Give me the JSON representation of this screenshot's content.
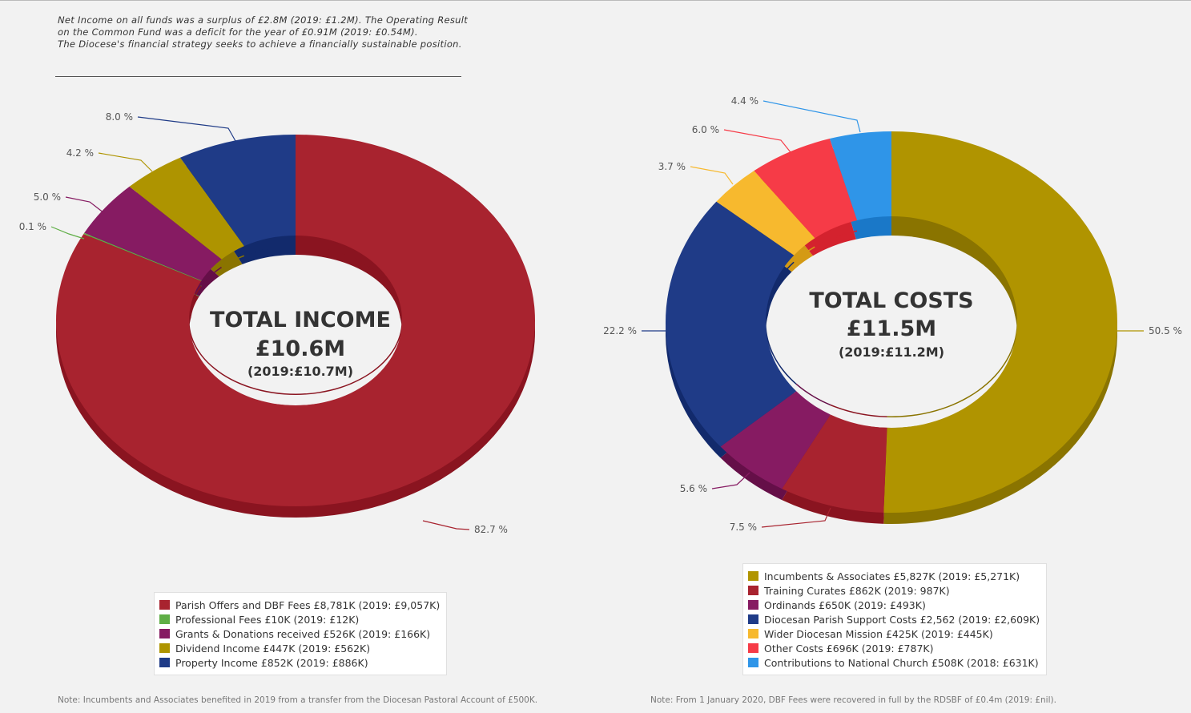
{
  "intro": {
    "lines": [
      "Net Income on all funds was a surplus of £2.8M (2019: £1.2M). The Operating Result",
      "on the Common Fund was a deficit for the year of £0.91M (2019: £0.54M).",
      "The Diocese's financial strategy seeks to achieve a financially sustainable position."
    ]
  },
  "chart_data": [
    {
      "type": "pie",
      "subtype": "donut",
      "center": {
        "title": "TOTAL INCOME",
        "value": "£10.6M",
        "sub": "(2019:£10.7M)"
      },
      "slices": [
        {
          "label": "Parish Offers and DBF Fees £8,781K (2019: £9,057K)",
          "value": 82.7,
          "pct_label": "82.7 %",
          "color": "#a8232f",
          "dark": "#8a1420"
        },
        {
          "label": "Professional Fees £10K (2019: £12K)",
          "value": 0.1,
          "pct_label": "0.1 %",
          "color": "#5fae46",
          "dark": "#3f8a2e"
        },
        {
          "label": "Grants & Donations received £526K (2019: £166K)",
          "value": 5.0,
          "pct_label": "5.0 %",
          "color": "#861b62",
          "dark": "#650f48"
        },
        {
          "label": "Dividend Income £447K (2019: £562K)",
          "value": 4.2,
          "pct_label": "4.2 %",
          "color": "#ae9400",
          "dark": "#8a7400"
        },
        {
          "label": "Property Income £852K (2019: £886K)",
          "value": 8.0,
          "pct_label": "8.0 %",
          "color": "#1f3b87",
          "dark": "#122a6c"
        }
      ]
    },
    {
      "type": "pie",
      "subtype": "donut",
      "center": {
        "title": "TOTAL COSTS",
        "value": "£11.5M",
        "sub": "(2019:£11.2M)"
      },
      "slices": [
        {
          "label": "Incumbents & Associates £5,827K (2019: £5,271K)",
          "value": 50.5,
          "pct_label": "50.5 %",
          "color": "#b09400",
          "dark": "#8a7400"
        },
        {
          "label": "Training Curates £862K (2019: 987K)",
          "value": 7.5,
          "pct_label": "7.5 %",
          "color": "#a8232f",
          "dark": "#8a1420"
        },
        {
          "label": "Ordinands £650K (2019: £493K)",
          "value": 5.6,
          "pct_label": "5.6 %",
          "color": "#861b62",
          "dark": "#650f48"
        },
        {
          "label": "Diocesan Parish Support Costs £2,562 (2019: £2,609K)",
          "value": 22.2,
          "pct_label": "22.2 %",
          "color": "#1f3b87",
          "dark": "#122a6c"
        },
        {
          "label": "Wider Diocesan Mission £425K (2019: £445K)",
          "value": 3.7,
          "pct_label": "3.7 %",
          "color": "#f7b92e",
          "dark": "#d49a14"
        },
        {
          "label": "Other Costs £696K (2019: £787K)",
          "value": 6.0,
          "pct_label": "6.0 %",
          "color": "#f63b47",
          "dark": "#d4222e"
        },
        {
          "label": "Contributions to National Church £508K (2018: £631K)",
          "value": 4.4,
          "pct_label": "4.4 %",
          "color": "#2f95e8",
          "dark": "#1a78c8"
        }
      ]
    }
  ],
  "notes": {
    "left": "Note: Incumbents and Associates benefited in 2019 from a transfer from the Diocesan Pastoral Account of £500K.",
    "right": "Note: From 1 January 2020, DBF Fees were recovered in full by the RDSBF of £0.4m (2019: £nil)."
  }
}
